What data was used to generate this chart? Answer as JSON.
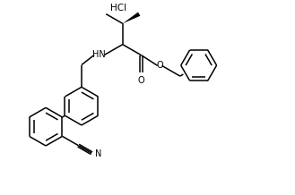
{
  "background": "#ffffff",
  "line_color": "#000000",
  "line_width": 1.1,
  "font_size": 7.0,
  "figsize": [
    3.29,
    2.18
  ],
  "dpi": 100,
  "xlim": [
    0,
    9.5
  ],
  "ylim": [
    0,
    6.3
  ]
}
